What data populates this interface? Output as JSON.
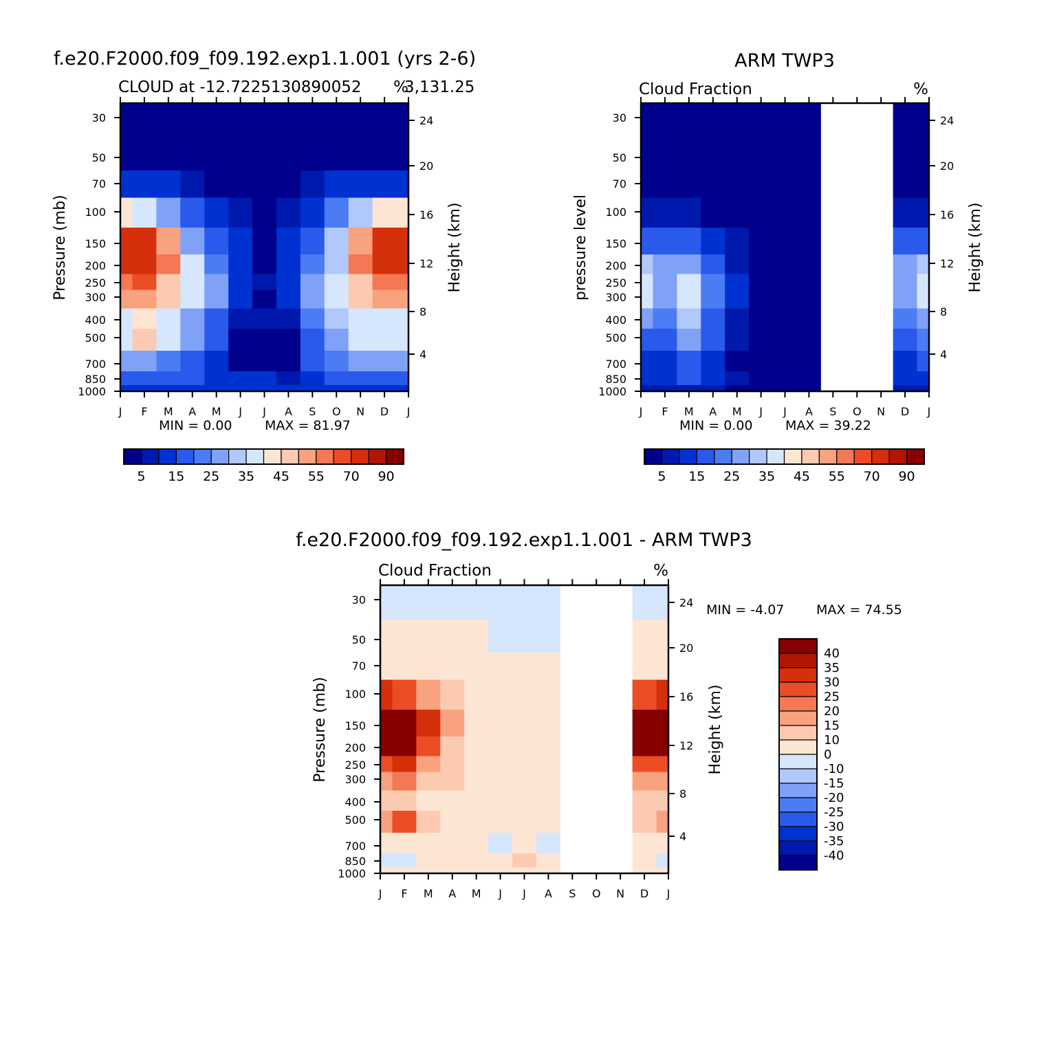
{
  "figure": {
    "months": [
      "J",
      "F",
      "M",
      "A",
      "M",
      "J",
      "J",
      "A",
      "S",
      "O",
      "N",
      "D",
      "J"
    ],
    "pressure_ticks": [
      30,
      50,
      70,
      100,
      150,
      200,
      250,
      300,
      400,
      500,
      700,
      850,
      1000
    ],
    "height_ticks": [
      4,
      8,
      12,
      16,
      20,
      24
    ],
    "ylabel_right": "Height (km)"
  },
  "chart_data": [
    {
      "type": "heatmap",
      "title": "f.e20.F2000.f09_f09.192.exp1.1.001 (yrs 2-6)",
      "left_label": "CLOUD at -12.7225130890052",
      "right_label": "%",
      "coord_overlap": "3,131.25",
      "ylabel": "Pressure (mb)",
      "ylabel_right": "Height (km)",
      "x": [
        "J",
        "F",
        "M",
        "A",
        "M",
        "J",
        "J",
        "A",
        "S",
        "O",
        "N",
        "D",
        "J"
      ],
      "y_pressure": [
        30,
        50,
        70,
        100,
        150,
        200,
        250,
        300,
        400,
        500,
        700,
        850,
        1000
      ],
      "min_text": "MIN = 0.00",
      "max_text": "MAX = 81.97",
      "min": 0.0,
      "max": 81.97,
      "colorbar": {
        "labels": [
          "5",
          "15",
          "25",
          "35",
          "45",
          "55",
          "70",
          "90"
        ],
        "colors": [
          "#00008c",
          "#0019ad",
          "#0032d2",
          "#2a5aeb",
          "#4c7cf3",
          "#7fa2f7",
          "#b1c8fa",
          "#d6e6fd",
          "#fde5d4",
          "#fccab1",
          "#f9a27f",
          "#f47853",
          "#ec4c26",
          "#d52f0b",
          "#b01600",
          "#860000"
        ]
      },
      "approx_grid_note": "values in %; rows = pressure levels 30..1000, cols = months J..J",
      "values": [
        [
          1,
          1,
          1,
          1,
          1,
          1,
          1,
          1,
          1,
          1,
          1,
          1,
          1
        ],
        [
          1,
          1,
          1,
          1,
          1,
          1,
          1,
          1,
          1,
          1,
          1,
          1,
          1
        ],
        [
          8,
          8,
          6,
          4,
          2,
          1,
          1,
          2,
          4,
          6,
          8,
          8,
          8
        ],
        [
          35,
          30,
          20,
          12,
          6,
          3,
          1,
          3,
          8,
          15,
          28,
          35,
          35
        ],
        [
          60,
          62,
          45,
          22,
          12,
          6,
          2,
          6,
          14,
          25,
          45,
          60,
          60
        ],
        [
          62,
          66,
          50,
          30,
          18,
          8,
          2,
          8,
          18,
          28,
          50,
          62,
          62
        ],
        [
          52,
          55,
          42,
          30,
          20,
          8,
          3,
          8,
          20,
          30,
          42,
          52,
          52
        ],
        [
          45,
          48,
          40,
          30,
          20,
          6,
          2,
          6,
          20,
          30,
          40,
          45,
          45
        ],
        [
          34,
          36,
          30,
          24,
          14,
          4,
          3,
          4,
          16,
          26,
          32,
          34,
          34
        ],
        [
          32,
          40,
          30,
          22,
          12,
          2,
          2,
          2,
          14,
          24,
          30,
          32,
          32
        ],
        [
          20,
          22,
          18,
          14,
          8,
          2,
          1,
          2,
          10,
          18,
          20,
          20,
          20
        ],
        [
          14,
          14,
          12,
          10,
          8,
          6,
          5,
          4,
          8,
          12,
          14,
          14,
          14
        ],
        [
          8,
          8,
          8,
          6,
          6,
          6,
          6,
          6,
          8,
          8,
          8,
          8,
          8
        ]
      ]
    },
    {
      "type": "heatmap",
      "title": "ARM TWP3",
      "left_label": "Cloud Fraction",
      "right_label": "%",
      "ylabel": "pressure level",
      "ylabel_right": "Height (km)",
      "x": [
        "J",
        "F",
        "M",
        "A",
        "M",
        "J",
        "J",
        "A",
        "S",
        "O",
        "N",
        "D",
        "J"
      ],
      "y_pressure": [
        30,
        50,
        70,
        100,
        150,
        200,
        250,
        300,
        400,
        500,
        700,
        850,
        1000
      ],
      "min_text": "MIN = 0.00",
      "max_text": "MAX = 39.22",
      "min": 0.0,
      "max": 39.22,
      "missing_months": [
        "S",
        "O",
        "N"
      ],
      "colorbar": {
        "labels": [
          "5",
          "15",
          "25",
          "35",
          "45",
          "55",
          "70",
          "90"
        ],
        "colors": [
          "#00008c",
          "#0019ad",
          "#0032d2",
          "#2a5aeb",
          "#4c7cf3",
          "#7fa2f7",
          "#b1c8fa",
          "#d6e6fd",
          "#fde5d4",
          "#fccab1",
          "#f9a27f",
          "#f47853",
          "#ec4c26",
          "#d52f0b",
          "#b01600",
          "#860000"
        ]
      },
      "values": [
        [
          1,
          1,
          1,
          1,
          1,
          1,
          1,
          1,
          null,
          null,
          null,
          1,
          1
        ],
        [
          1,
          1,
          1,
          1,
          1,
          1,
          1,
          1,
          null,
          null,
          null,
          1,
          1
        ],
        [
          1,
          1,
          1,
          1,
          1,
          1,
          1,
          1,
          null,
          null,
          null,
          1,
          1
        ],
        [
          3,
          3,
          4,
          2,
          1,
          1,
          1,
          1,
          null,
          null,
          null,
          3,
          4
        ],
        [
          14,
          12,
          14,
          8,
          3,
          1,
          1,
          1,
          null,
          null,
          null,
          12,
          14
        ],
        [
          26,
          20,
          24,
          14,
          4,
          1,
          1,
          1,
          null,
          null,
          null,
          20,
          26
        ],
        [
          32,
          22,
          30,
          18,
          6,
          1,
          1,
          1,
          null,
          null,
          null,
          24,
          30
        ],
        [
          30,
          22,
          32,
          18,
          6,
          1,
          1,
          1,
          null,
          null,
          null,
          24,
          30
        ],
        [
          22,
          16,
          26,
          14,
          4,
          1,
          1,
          1,
          null,
          null,
          null,
          18,
          22
        ],
        [
          14,
          12,
          20,
          10,
          3,
          1,
          1,
          1,
          null,
          null,
          null,
          14,
          16
        ],
        [
          8,
          8,
          12,
          6,
          2,
          1,
          1,
          1,
          null,
          null,
          null,
          8,
          10
        ],
        [
          6,
          8,
          10,
          6,
          3,
          2,
          1,
          1,
          null,
          null,
          null,
          6,
          8
        ],
        [
          4,
          4,
          4,
          4,
          2,
          1,
          1,
          1,
          null,
          null,
          null,
          3,
          4
        ]
      ]
    },
    {
      "type": "heatmap",
      "title": "f.e20.F2000.f09_f09.192.exp1.1.001 - ARM TWP3",
      "left_label": "Cloud Fraction",
      "right_label": "%",
      "ylabel": "Pressure (mb)",
      "ylabel_right": "Height (km)",
      "x": [
        "J",
        "F",
        "M",
        "A",
        "M",
        "J",
        "J",
        "A",
        "S",
        "O",
        "N",
        "D",
        "J"
      ],
      "y_pressure": [
        30,
        50,
        70,
        100,
        150,
        200,
        250,
        300,
        400,
        500,
        700,
        850,
        1000
      ],
      "min_text": "MIN = -4.07",
      "max_text": "MAX = 74.55",
      "min": -4.07,
      "max": 74.55,
      "missing_months": [
        "S",
        "O",
        "N"
      ],
      "colorbar": {
        "labels": [
          "40",
          "35",
          "30",
          "25",
          "20",
          "15",
          "10",
          "0",
          "-10",
          "-15",
          "-20",
          "-25",
          "-30",
          "-35",
          "-40"
        ],
        "colors": [
          "#860000",
          "#b01600",
          "#d52f0b",
          "#ec4c26",
          "#f47853",
          "#f9a27f",
          "#fccab1",
          "#fde5d4",
          "#d6e6fd",
          "#b1c8fa",
          "#7fa2f7",
          "#4c7cf3",
          "#2a5aeb",
          "#0032d2",
          "#0019ad",
          "#00008c"
        ]
      },
      "values": [
        [
          -1,
          -1,
          -1,
          -1,
          -1,
          -1,
          -1,
          -1,
          null,
          null,
          null,
          -1,
          -1
        ],
        [
          3,
          3,
          3,
          3,
          3,
          -1,
          -1,
          -1,
          null,
          null,
          null,
          3,
          3
        ],
        [
          5,
          5,
          5,
          5,
          3,
          3,
          3,
          3,
          null,
          null,
          null,
          5,
          5
        ],
        [
          32,
          28,
          18,
          10,
          5,
          3,
          3,
          3,
          null,
          null,
          null,
          28,
          32
        ],
        [
          48,
          50,
          30,
          16,
          8,
          5,
          3,
          5,
          null,
          null,
          null,
          48,
          48
        ],
        [
          45,
          48,
          26,
          14,
          8,
          5,
          3,
          5,
          null,
          null,
          null,
          45,
          45
        ],
        [
          28,
          32,
          18,
          12,
          8,
          5,
          3,
          5,
          null,
          null,
          null,
          28,
          28
        ],
        [
          18,
          20,
          14,
          10,
          6,
          5,
          3,
          5,
          null,
          null,
          null,
          18,
          18
        ],
        [
          14,
          12,
          8,
          8,
          6,
          5,
          3,
          5,
          null,
          null,
          null,
          12,
          14
        ],
        [
          18,
          26,
          10,
          8,
          6,
          3,
          3,
          3,
          null,
          null,
          null,
          14,
          18
        ],
        [
          6,
          6,
          4,
          4,
          3,
          -1,
          3,
          -1,
          null,
          null,
          null,
          6,
          6
        ],
        [
          -1,
          -1,
          3,
          3,
          3,
          3,
          12,
          3,
          null,
          null,
          null,
          3,
          -1
        ],
        [
          3,
          3,
          3,
          3,
          3,
          3,
          3,
          3,
          null,
          null,
          null,
          3,
          3
        ]
      ]
    }
  ]
}
